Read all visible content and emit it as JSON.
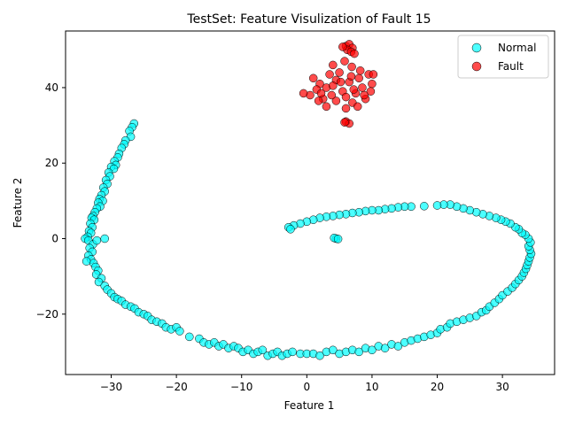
{
  "chart_data": {
    "type": "scatter",
    "title": "TestSet: Feature Visulization of Fault 15",
    "xlabel": "Feature 1",
    "ylabel": "Feature 2",
    "xlim": [
      -37,
      38
    ],
    "ylim": [
      -36,
      55
    ],
    "xticks": [
      -30,
      -20,
      -10,
      0,
      10,
      20,
      30
    ],
    "yticks": [
      -20,
      0,
      20,
      40
    ],
    "xtick_labels": [
      "−30",
      "−20",
      "−10",
      "0",
      "10",
      "20",
      "30"
    ],
    "ytick_labels": [
      "−20",
      "0",
      "20",
      "40"
    ],
    "grid": false,
    "legend_position": "top-right",
    "series": [
      {
        "name": "Normal",
        "color": "#00ffff",
        "points": [
          [
            -26.5,
            30.5
          ],
          [
            -26.8,
            29.5
          ],
          [
            -27.2,
            28.5
          ],
          [
            -27.0,
            27.0
          ],
          [
            -27.8,
            26.0
          ],
          [
            -28.0,
            25.0
          ],
          [
            -28.4,
            24.0
          ],
          [
            -28.8,
            22.5
          ],
          [
            -29.0,
            21.5
          ],
          [
            -29.5,
            20.5
          ],
          [
            -29.3,
            19.5
          ],
          [
            -30.0,
            19.0
          ],
          [
            -29.6,
            18.5
          ],
          [
            -30.4,
            17.5
          ],
          [
            -30.2,
            16.5
          ],
          [
            -30.8,
            15.5
          ],
          [
            -30.6,
            14.5
          ],
          [
            -31.2,
            13.5
          ],
          [
            -31.0,
            12.5
          ],
          [
            -31.5,
            11.5
          ],
          [
            -31.8,
            10.5
          ],
          [
            -31.3,
            10.0
          ],
          [
            -32.0,
            9.5
          ],
          [
            -31.7,
            8.5
          ],
          [
            -32.2,
            8.0
          ],
          [
            -32.5,
            7.0
          ],
          [
            -32.8,
            6.0
          ],
          [
            -33.0,
            5.5
          ],
          [
            -32.6,
            5.0
          ],
          [
            -33.2,
            4.0
          ],
          [
            -32.9,
            3.0
          ],
          [
            -33.4,
            2.0
          ],
          [
            -33.1,
            1.5
          ],
          [
            -33.6,
            0.5
          ],
          [
            -34.0,
            0.0
          ],
          [
            -33.5,
            -0.5
          ],
          [
            -32.8,
            -1.5
          ],
          [
            -32.2,
            -0.5
          ],
          [
            -31.0,
            0.0
          ],
          [
            -33.3,
            -2.5
          ],
          [
            -32.9,
            -3.5
          ],
          [
            -33.5,
            -4.5
          ],
          [
            -33.1,
            -5.5
          ],
          [
            -32.7,
            -6.5
          ],
          [
            -33.8,
            -6.0
          ],
          [
            -32.4,
            -7.5
          ],
          [
            -32.0,
            -8.5
          ],
          [
            -32.3,
            -9.5
          ],
          [
            -31.5,
            -10.5
          ],
          [
            -31.9,
            -11.5
          ],
          [
            -31.0,
            -12.5
          ],
          [
            -30.6,
            -13.5
          ],
          [
            -30.0,
            -14.5
          ],
          [
            -29.5,
            -15.5
          ],
          [
            -29.0,
            -16.0
          ],
          [
            -28.4,
            -16.5
          ],
          [
            -27.8,
            -17.5
          ],
          [
            -27.0,
            -18.0
          ],
          [
            -26.4,
            -18.5
          ],
          [
            -25.8,
            -19.5
          ],
          [
            -25.0,
            -20.0
          ],
          [
            -24.4,
            -20.5
          ],
          [
            -23.8,
            -21.5
          ],
          [
            -23.0,
            -22.0
          ],
          [
            -22.2,
            -22.5
          ],
          [
            -21.6,
            -23.5
          ],
          [
            -20.8,
            -24.0
          ],
          [
            -20.0,
            -23.5
          ],
          [
            -19.5,
            -24.5
          ],
          [
            -18.0,
            -26.0
          ],
          [
            -16.5,
            -26.5
          ],
          [
            -15.8,
            -27.5
          ],
          [
            -15.0,
            -28.0
          ],
          [
            -14.2,
            -27.5
          ],
          [
            -13.5,
            -28.5
          ],
          [
            -12.8,
            -28.0
          ],
          [
            -12.0,
            -29.0
          ],
          [
            -11.2,
            -28.5
          ],
          [
            -10.5,
            -29.0
          ],
          [
            -9.8,
            -30.0
          ],
          [
            -9.0,
            -29.5
          ],
          [
            -8.2,
            -30.5
          ],
          [
            -7.5,
            -30.0
          ],
          [
            -6.8,
            -29.5
          ],
          [
            -6.0,
            -31.0
          ],
          [
            -5.2,
            -30.5
          ],
          [
            -4.5,
            -30.0
          ],
          [
            -3.8,
            -31.0
          ],
          [
            -3.0,
            -30.5
          ],
          [
            -2.2,
            -30.0
          ],
          [
            -1.0,
            -30.5
          ],
          [
            0.0,
            -30.5
          ],
          [
            1.0,
            -30.5
          ],
          [
            2.0,
            -31.0
          ],
          [
            3.0,
            -30.0
          ],
          [
            4.0,
            -29.5
          ],
          [
            5.0,
            -30.5
          ],
          [
            6.0,
            -30.0
          ],
          [
            7.0,
            -29.5
          ],
          [
            8.0,
            -30.0
          ],
          [
            9.0,
            -29.0
          ],
          [
            10.0,
            -29.5
          ],
          [
            11.0,
            -28.5
          ],
          [
            12.0,
            -29.0
          ],
          [
            13.0,
            -28.0
          ],
          [
            14.0,
            -28.5
          ],
          [
            15.0,
            -27.5
          ],
          [
            16.0,
            -27.0
          ],
          [
            17.0,
            -26.5
          ],
          [
            18.0,
            -26.0
          ],
          [
            19.0,
            -25.5
          ],
          [
            20.0,
            -25.0
          ],
          [
            20.5,
            -24.0
          ],
          [
            21.5,
            -23.5
          ],
          [
            22.0,
            -22.5
          ],
          [
            23.0,
            -22.0
          ],
          [
            24.0,
            -21.5
          ],
          [
            25.0,
            -21.0
          ],
          [
            26.0,
            -20.5
          ],
          [
            26.8,
            -19.5
          ],
          [
            27.5,
            -19.0
          ],
          [
            28.0,
            -18.0
          ],
          [
            28.8,
            -17.0
          ],
          [
            29.5,
            -16.0
          ],
          [
            30.0,
            -15.0
          ],
          [
            30.8,
            -14.0
          ],
          [
            31.5,
            -13.0
          ],
          [
            32.0,
            -12.0
          ],
          [
            32.5,
            -11.0
          ],
          [
            33.0,
            -10.0
          ],
          [
            33.3,
            -9.0
          ],
          [
            33.6,
            -8.0
          ],
          [
            33.8,
            -7.0
          ],
          [
            34.0,
            -6.0
          ],
          [
            34.2,
            -5.0
          ],
          [
            34.4,
            -4.0
          ],
          [
            34.2,
            -3.0
          ],
          [
            34.0,
            -2.0
          ],
          [
            34.3,
            -1.0
          ],
          [
            34.0,
            0.0
          ],
          [
            33.5,
            1.0
          ],
          [
            33.0,
            1.5
          ],
          [
            32.5,
            2.5
          ],
          [
            32.0,
            3.0
          ],
          [
            31.2,
            4.0
          ],
          [
            30.5,
            4.5
          ],
          [
            29.8,
            5.0
          ],
          [
            29.0,
            5.5
          ],
          [
            28.0,
            6.0
          ],
          [
            27.0,
            6.5
          ],
          [
            26.0,
            7.0
          ],
          [
            25.0,
            7.5
          ],
          [
            24.0,
            8.0
          ],
          [
            23.0,
            8.5
          ],
          [
            22.0,
            9.0
          ],
          [
            21.0,
            9.0
          ],
          [
            20.0,
            8.8
          ],
          [
            18.0,
            8.6
          ],
          [
            16.0,
            8.5
          ],
          [
            15.0,
            8.5
          ],
          [
            14.0,
            8.3
          ],
          [
            13.0,
            8.0
          ],
          [
            12.0,
            7.8
          ],
          [
            11.0,
            7.5
          ],
          [
            10.0,
            7.5
          ],
          [
            9.0,
            7.3
          ],
          [
            8.0,
            7.0
          ],
          [
            7.0,
            6.8
          ],
          [
            6.0,
            6.5
          ],
          [
            5.0,
            6.3
          ],
          [
            4.0,
            6.0
          ],
          [
            3.0,
            5.8
          ],
          [
            2.0,
            5.5
          ],
          [
            1.0,
            5.0
          ],
          [
            0.0,
            4.5
          ],
          [
            -1.0,
            4.0
          ],
          [
            -2.0,
            3.5
          ],
          [
            -2.8,
            3.0
          ],
          [
            -2.5,
            2.5
          ],
          [
            4.5,
            0.0
          ],
          [
            4.2,
            0.2
          ],
          [
            4.8,
            -0.1
          ]
        ]
      },
      {
        "name": "Fault",
        "color": "#ff0000",
        "points": [
          [
            6.0,
            51.0
          ],
          [
            6.5,
            51.5
          ],
          [
            7.0,
            50.5
          ],
          [
            6.2,
            50.0
          ],
          [
            6.8,
            49.5
          ],
          [
            7.3,
            49.0
          ],
          [
            5.5,
            50.8
          ],
          [
            6.0,
            31.0
          ],
          [
            6.5,
            30.5
          ],
          [
            5.8,
            30.8
          ],
          [
            1.0,
            42.5
          ],
          [
            2.0,
            41.0
          ],
          [
            1.5,
            39.5
          ],
          [
            0.5,
            38.0
          ],
          [
            2.5,
            37.0
          ],
          [
            3.0,
            40.0
          ],
          [
            3.5,
            43.5
          ],
          [
            4.0,
            46.0
          ],
          [
            4.5,
            42.0
          ],
          [
            5.0,
            44.0
          ],
          [
            5.5,
            39.0
          ],
          [
            6.0,
            37.5
          ],
          [
            6.5,
            41.5
          ],
          [
            7.0,
            36.0
          ],
          [
            7.5,
            38.5
          ],
          [
            8.0,
            42.5
          ],
          [
            8.5,
            40.0
          ],
          [
            9.0,
            37.0
          ],
          [
            9.5,
            43.5
          ],
          [
            10.0,
            41.0
          ],
          [
            3.0,
            35.0
          ],
          [
            4.5,
            36.5
          ],
          [
            6.0,
            34.5
          ],
          [
            7.8,
            35.0
          ],
          [
            2.2,
            38.5
          ],
          [
            4.0,
            40.5
          ],
          [
            5.2,
            41.5
          ],
          [
            6.8,
            43.0
          ],
          [
            8.2,
            44.5
          ],
          [
            3.8,
            38.0
          ],
          [
            7.2,
            39.5
          ],
          [
            9.8,
            39.0
          ],
          [
            -0.5,
            38.5
          ],
          [
            1.8,
            36.5
          ],
          [
            5.8,
            47.0
          ],
          [
            6.9,
            45.5
          ],
          [
            8.8,
            38.0
          ],
          [
            10.2,
            43.5
          ]
        ]
      }
    ]
  }
}
